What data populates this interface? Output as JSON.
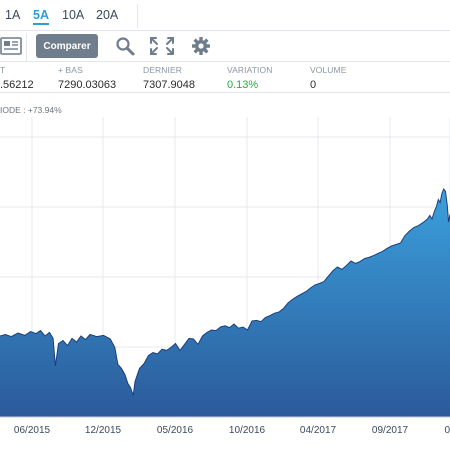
{
  "range_tabs": [
    {
      "label": "1A",
      "active": false
    },
    {
      "label": "5A",
      "active": true
    },
    {
      "label": "10A",
      "active": false
    },
    {
      "label": "20A",
      "active": false
    }
  ],
  "toolbar": {
    "compare_label": "Comparer",
    "icons": [
      "newspaper-icon",
      "search-icon",
      "expand-icon",
      "gear-icon"
    ]
  },
  "stats": [
    {
      "label": "T",
      "value": ".56212"
    },
    {
      "label": "+ BAS",
      "value": "7290.03063"
    },
    {
      "label": "DERNIER",
      "value": "7307.9048"
    },
    {
      "label": "VARIATION",
      "value": "0.13%"
    },
    {
      "label": "VOLUME",
      "value": "0"
    }
  ],
  "period_label": "IODE : +73.94%",
  "colors": {
    "accent": "#2a9fd6",
    "positive": "#1fae3e",
    "area_top": "#3aa0dc",
    "area_bottom": "#2b5a9a",
    "line": "#1c3f7a"
  },
  "chart_data": {
    "type": "area",
    "x_tick_labels": [
      "06/2015",
      "12/2015",
      "05/2016",
      "10/2016",
      "04/2017",
      "09/2017",
      "0"
    ],
    "grid": true,
    "points": [
      [
        0.0,
        0.27
      ],
      [
        0.012,
        0.275
      ],
      [
        0.025,
        0.268
      ],
      [
        0.04,
        0.28
      ],
      [
        0.055,
        0.272
      ],
      [
        0.068,
        0.285
      ],
      [
        0.08,
        0.278
      ],
      [
        0.09,
        0.288
      ],
      [
        0.1,
        0.27
      ],
      [
        0.11,
        0.282
      ],
      [
        0.118,
        0.262
      ],
      [
        0.123,
        0.17
      ],
      [
        0.13,
        0.245
      ],
      [
        0.14,
        0.255
      ],
      [
        0.15,
        0.238
      ],
      [
        0.16,
        0.262
      ],
      [
        0.17,
        0.25
      ],
      [
        0.18,
        0.27
      ],
      [
        0.19,
        0.258
      ],
      [
        0.2,
        0.275
      ],
      [
        0.215,
        0.268
      ],
      [
        0.23,
        0.272
      ],
      [
        0.245,
        0.26
      ],
      [
        0.255,
        0.232
      ],
      [
        0.262,
        0.175
      ],
      [
        0.27,
        0.162
      ],
      [
        0.278,
        0.14
      ],
      [
        0.284,
        0.112
      ],
      [
        0.29,
        0.098
      ],
      [
        0.296,
        0.072
      ],
      [
        0.3,
        0.118
      ],
      [
        0.31,
        0.162
      ],
      [
        0.32,
        0.178
      ],
      [
        0.33,
        0.205
      ],
      [
        0.34,
        0.215
      ],
      [
        0.35,
        0.21
      ],
      [
        0.36,
        0.226
      ],
      [
        0.37,
        0.222
      ],
      [
        0.38,
        0.232
      ],
      [
        0.39,
        0.245
      ],
      [
        0.4,
        0.222
      ],
      [
        0.41,
        0.242
      ],
      [
        0.42,
        0.262
      ],
      [
        0.43,
        0.26
      ],
      [
        0.44,
        0.242
      ],
      [
        0.45,
        0.27
      ],
      [
        0.46,
        0.282
      ],
      [
        0.47,
        0.29
      ],
      [
        0.48,
        0.288
      ],
      [
        0.49,
        0.3
      ],
      [
        0.5,
        0.304
      ],
      [
        0.51,
        0.298
      ],
      [
        0.52,
        0.31
      ],
      [
        0.53,
        0.296
      ],
      [
        0.54,
        0.3
      ],
      [
        0.55,
        0.29
      ],
      [
        0.56,
        0.32
      ],
      [
        0.57,
        0.322
      ],
      [
        0.58,
        0.318
      ],
      [
        0.59,
        0.332
      ],
      [
        0.6,
        0.338
      ],
      [
        0.61,
        0.346
      ],
      [
        0.62,
        0.35
      ],
      [
        0.63,
        0.362
      ],
      [
        0.64,
        0.38
      ],
      [
        0.65,
        0.392
      ],
      [
        0.66,
        0.402
      ],
      [
        0.67,
        0.41
      ],
      [
        0.68,
        0.418
      ],
      [
        0.69,
        0.43
      ],
      [
        0.7,
        0.44
      ],
      [
        0.71,
        0.445
      ],
      [
        0.72,
        0.452
      ],
      [
        0.73,
        0.47
      ],
      [
        0.74,
        0.488
      ],
      [
        0.75,
        0.5
      ],
      [
        0.76,
        0.492
      ],
      [
        0.77,
        0.505
      ],
      [
        0.78,
        0.52
      ],
      [
        0.79,
        0.512
      ],
      [
        0.8,
        0.518
      ],
      [
        0.81,
        0.528
      ],
      [
        0.82,
        0.532
      ],
      [
        0.83,
        0.538
      ],
      [
        0.84,
        0.545
      ],
      [
        0.85,
        0.552
      ],
      [
        0.86,
        0.562
      ],
      [
        0.87,
        0.57
      ],
      [
        0.88,
        0.575
      ],
      [
        0.89,
        0.58
      ],
      [
        0.9,
        0.605
      ],
      [
        0.91,
        0.62
      ],
      [
        0.92,
        0.632
      ],
      [
        0.93,
        0.638
      ],
      [
        0.94,
        0.648
      ],
      [
        0.95,
        0.66
      ],
      [
        0.955,
        0.672
      ],
      [
        0.96,
        0.66
      ],
      [
        0.965,
        0.685
      ],
      [
        0.97,
        0.702
      ],
      [
        0.974,
        0.725
      ],
      [
        0.978,
        0.715
      ],
      [
        0.982,
        0.745
      ],
      [
        0.986,
        0.76
      ],
      [
        0.99,
        0.752
      ],
      [
        0.994,
        0.705
      ],
      [
        0.997,
        0.65
      ],
      [
        1.0,
        0.675
      ]
    ]
  }
}
